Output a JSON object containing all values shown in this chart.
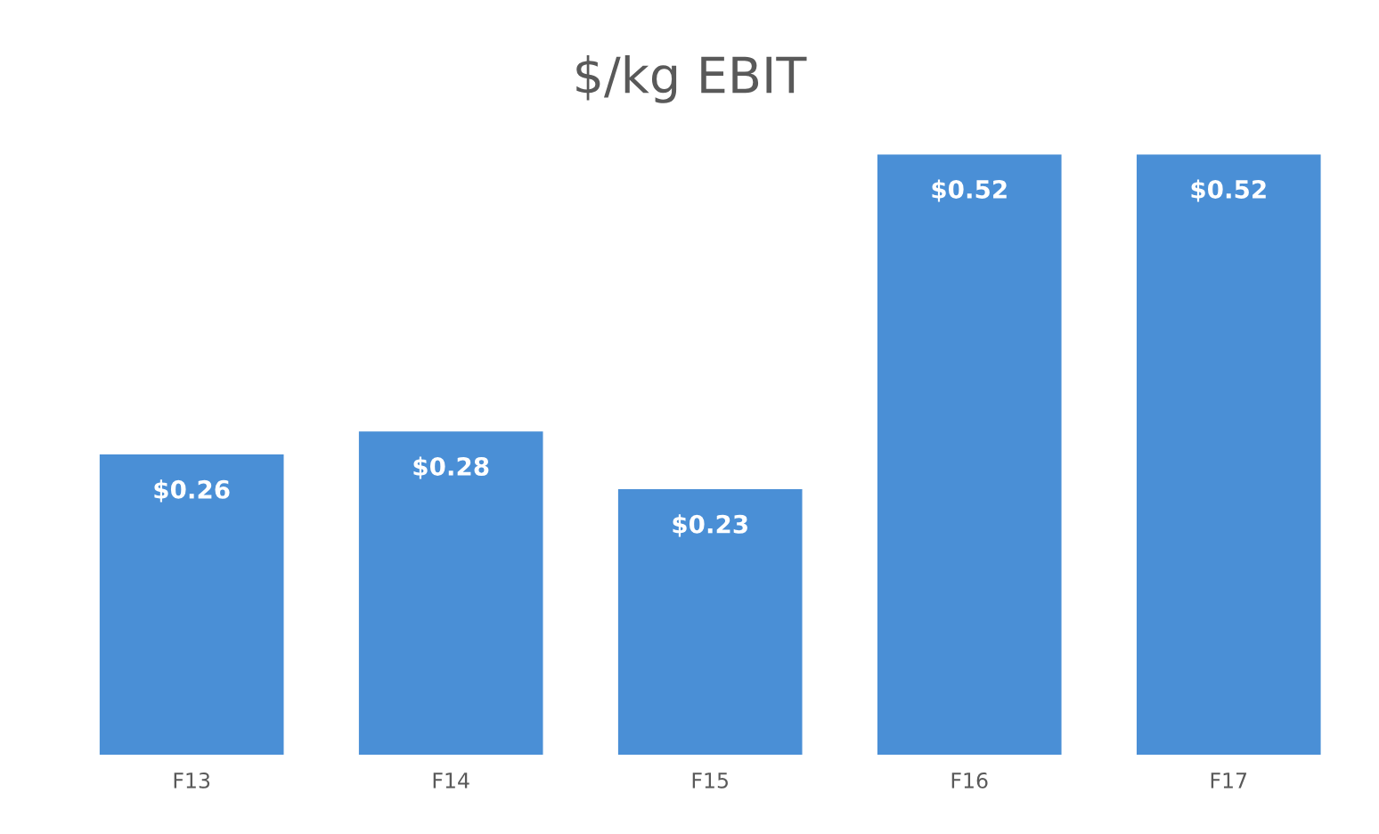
{
  "chart_data": {
    "type": "bar",
    "title": "$/kg EBIT",
    "categories": [
      "F13",
      "F14",
      "F15",
      "F16",
      "F17"
    ],
    "values": [
      0.26,
      0.28,
      0.23,
      0.52,
      0.52
    ],
    "value_labels": [
      "$0.26",
      "$0.28",
      "$0.23",
      "$0.52",
      "$0.52"
    ],
    "color": "#4a8fd6",
    "grid": false,
    "legend": false
  }
}
